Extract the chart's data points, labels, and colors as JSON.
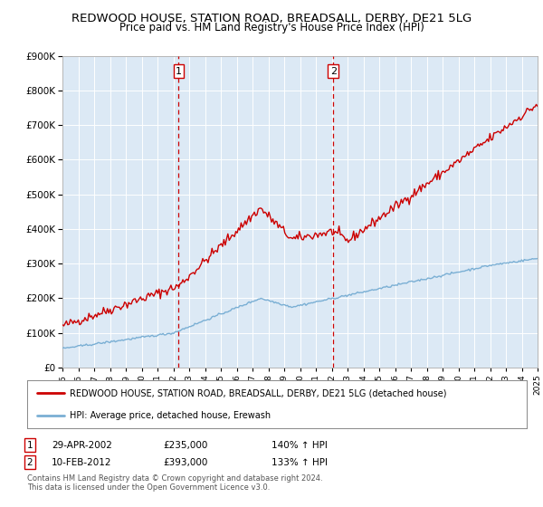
{
  "title": "REDWOOD HOUSE, STATION ROAD, BREADSALL, DERBY, DE21 5LG",
  "subtitle": "Price paid vs. HM Land Registry's House Price Index (HPI)",
  "title_fontsize": 9.5,
  "subtitle_fontsize": 8.5,
  "ylim": [
    0,
    900000
  ],
  "x_start_year": 1995,
  "x_end_year": 2025,
  "plot_bg_color": "#dce9f5",
  "red_line_color": "#cc0000",
  "blue_line_color": "#7aafd4",
  "vline_color": "#cc0000",
  "marker1_year": 2002.33,
  "marker2_year": 2012.1,
  "marker1_label": "1",
  "marker2_label": "2",
  "legend_red_label": "REDWOOD HOUSE, STATION ROAD, BREADSALL, DERBY, DE21 5LG (detached house)",
  "legend_blue_label": "HPI: Average price, detached house, Erewash",
  "ann1": [
    "1",
    "29-APR-2002",
    "£235,000",
    "140% ↑ HPI"
  ],
  "ann2": [
    "2",
    "10-FEB-2012",
    "£393,000",
    "133% ↑ HPI"
  ],
  "footer1": "Contains HM Land Registry data © Crown copyright and database right 2024.",
  "footer2": "This data is licensed under the Open Government Licence v3.0."
}
